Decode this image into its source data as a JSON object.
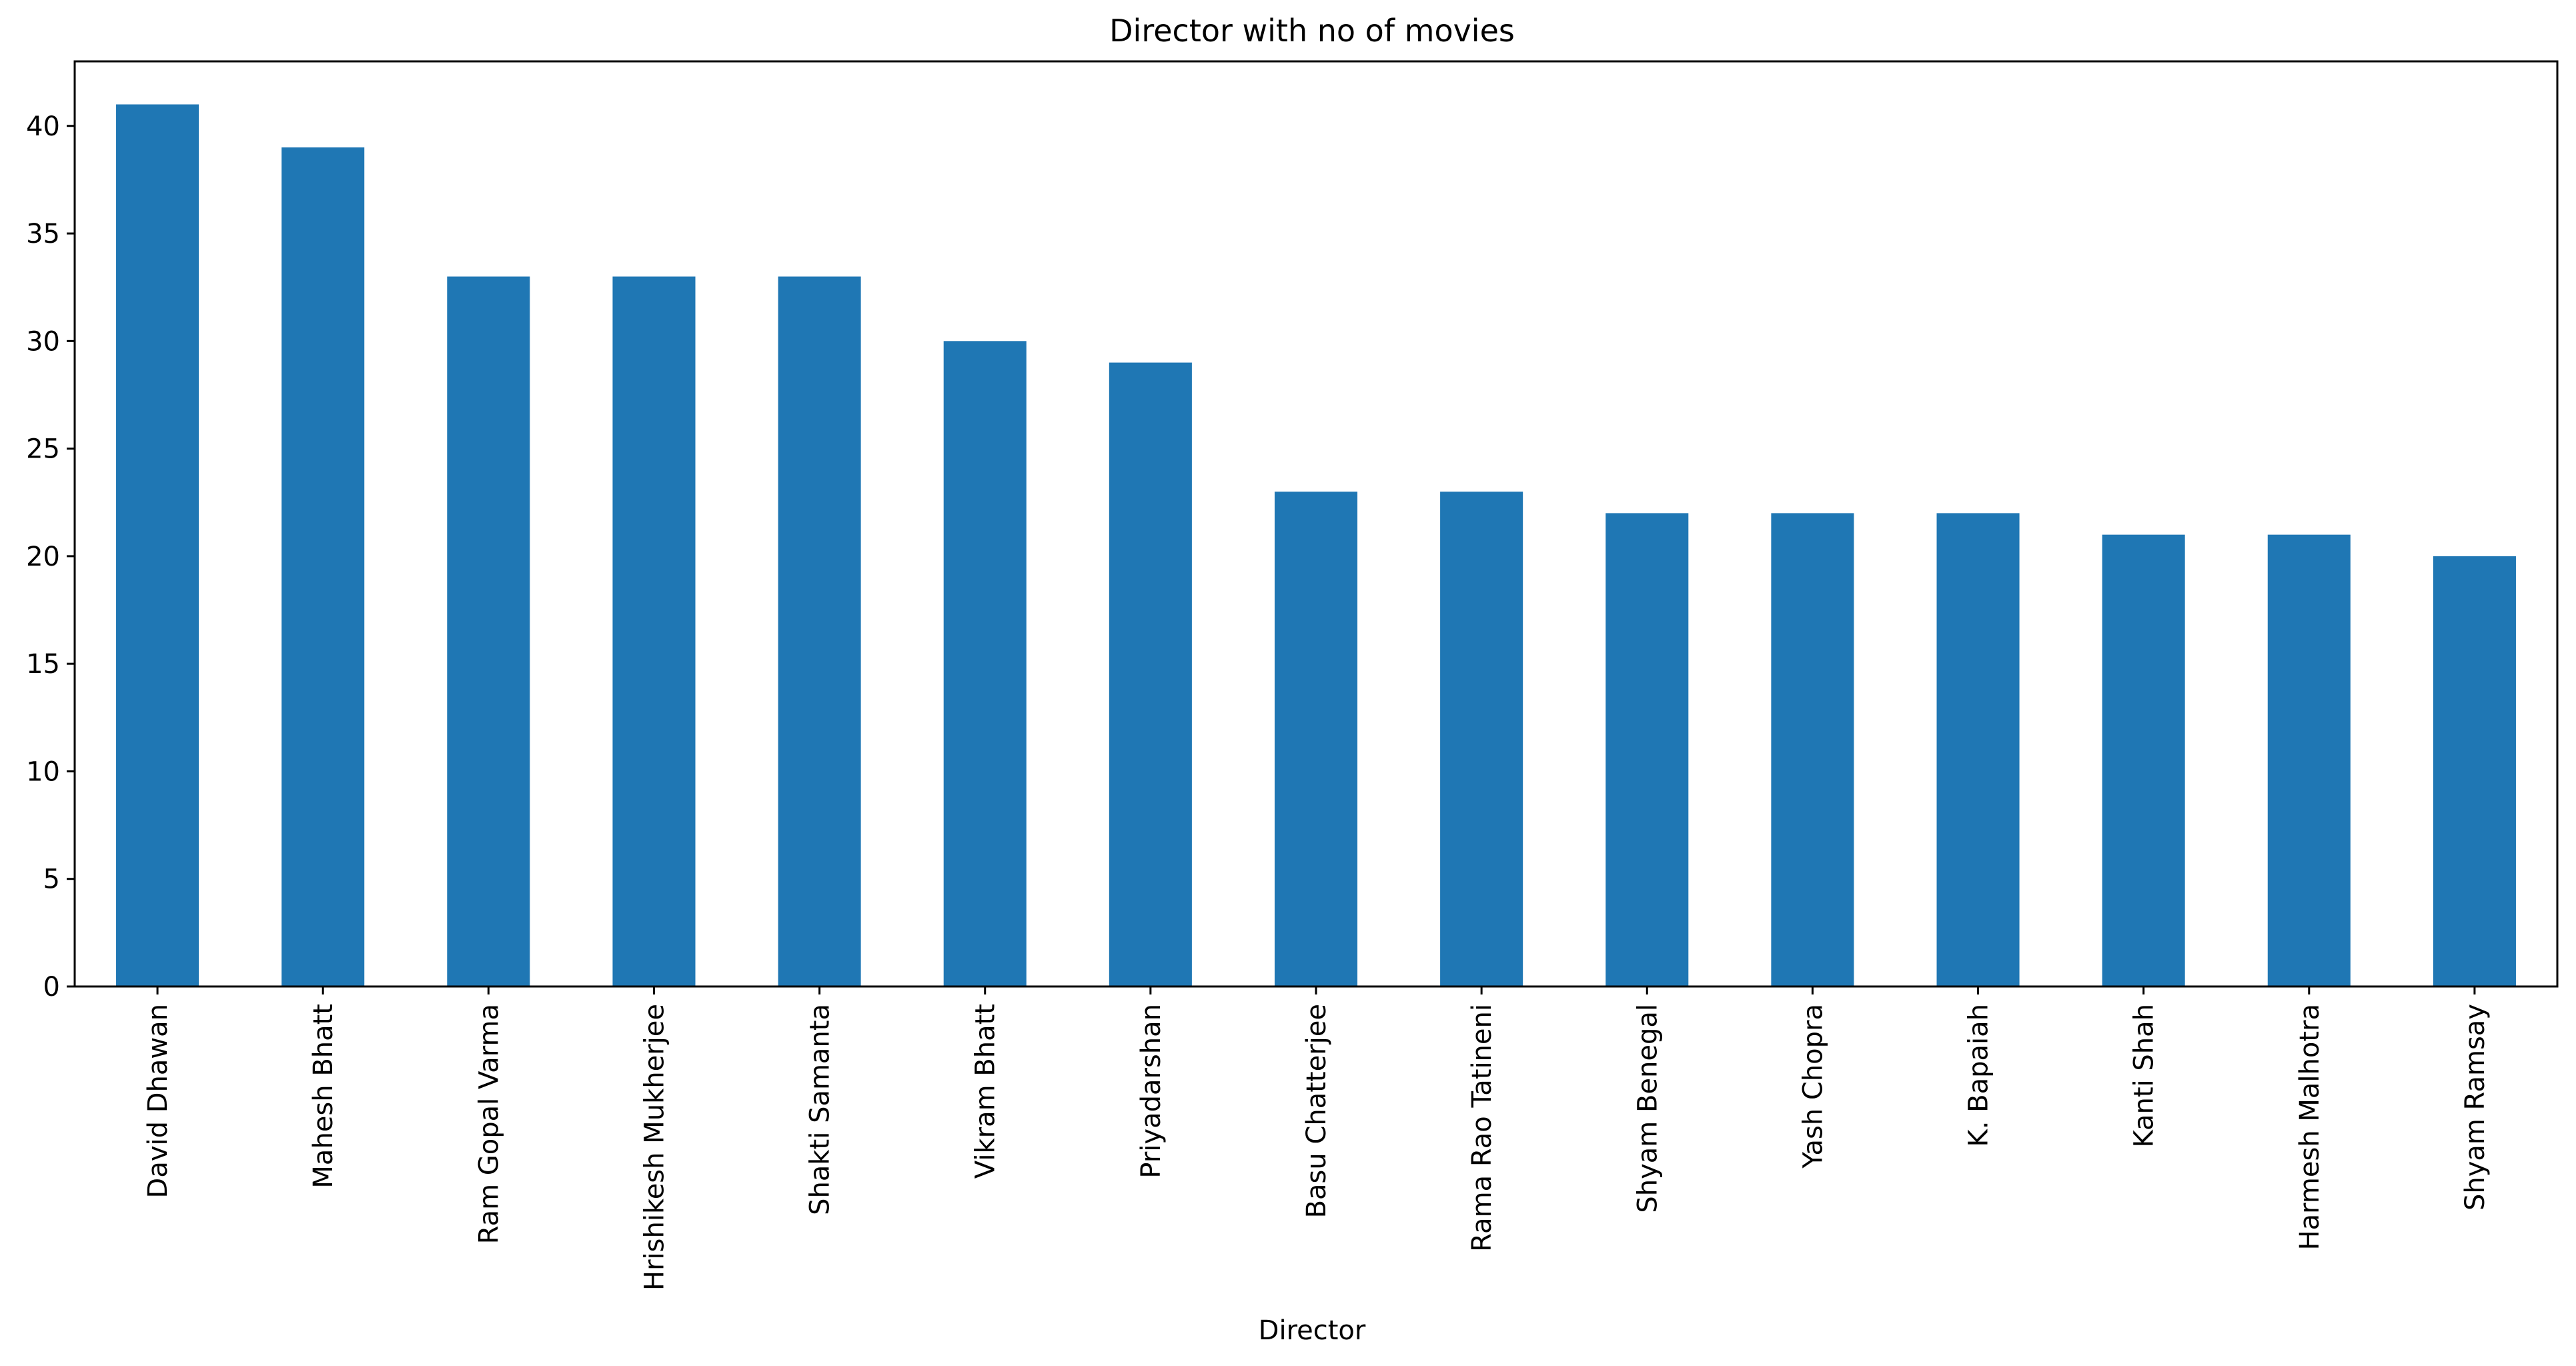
{
  "chart_data": {
    "type": "bar",
    "title": "Director with no of movies",
    "xlabel": "Director",
    "ylabel": "",
    "categories": [
      "David Dhawan",
      "Mahesh Bhatt",
      "Ram Gopal Varma",
      "Hrishikesh Mukherjee",
      "Shakti Samanta",
      "Vikram Bhatt",
      "Priyadarshan",
      "Basu Chatterjee",
      "Rama Rao Tatineni",
      "Shyam Benegal",
      "Yash Chopra",
      "K. Bapaiah",
      "Kanti Shah",
      "Harmesh Malhotra",
      "Shyam Ramsay"
    ],
    "values": [
      41,
      39,
      33,
      33,
      33,
      30,
      29,
      23,
      23,
      22,
      22,
      22,
      21,
      21,
      20
    ],
    "ylim": [
      0,
      43
    ],
    "yticks": [
      0,
      5,
      10,
      15,
      20,
      25,
      30,
      35,
      40
    ],
    "grid": false,
    "legend": "none",
    "colors": {
      "bar": "#1f77b4",
      "axis": "#000000",
      "background": "#ffffff"
    }
  }
}
